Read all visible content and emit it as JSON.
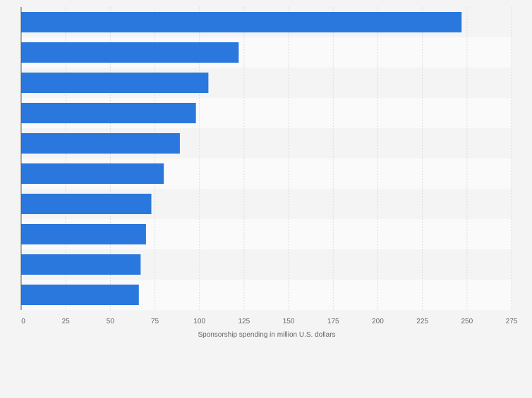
{
  "chart_data": {
    "type": "bar",
    "orientation": "horizontal",
    "categories": [
      "",
      "",
      "",
      "",
      "",
      "",
      "",
      "",
      "",
      ""
    ],
    "values": [
      247,
      122,
      105,
      98,
      89,
      80,
      73,
      70,
      67,
      66
    ],
    "xlabel": "Sponsorship spending in million U.S. dollars",
    "xlim": [
      0,
      275
    ],
    "x_ticks": [
      0,
      25,
      50,
      75,
      100,
      125,
      150,
      175,
      200,
      225,
      250,
      275
    ],
    "x_tick_labels": [
      "0",
      "25",
      "50",
      "75",
      "100",
      "125",
      "150",
      "175",
      "200",
      "225",
      "250",
      "275"
    ],
    "grid": "vertical",
    "legend": "none",
    "colors": {
      "bar": "#2a78de",
      "band_light": "#fafafa",
      "band_dark": "#f4f4f4",
      "grid": "#dcdcdc",
      "axis": "#555555",
      "tick_text": "#666666"
    }
  }
}
